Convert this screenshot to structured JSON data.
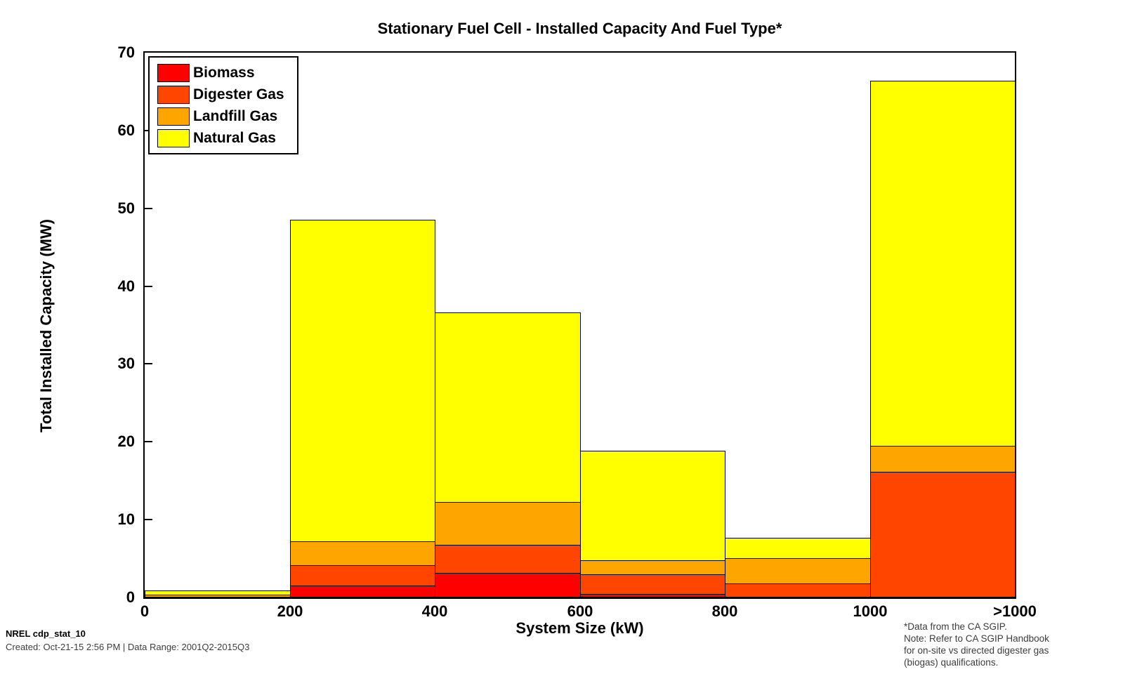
{
  "title": "Stationary Fuel Cell - Installed Capacity And Fuel Type*",
  "footer": {
    "left_line1": "NREL cdp_stat_10",
    "left_line2": "Created: Oct-21-15  2:56 PM | Data Range: 2001Q2-2015Q3",
    "note_lines": [
      "*Data from the CA SGIP.",
      "Note: Refer to CA SGIP Handbook",
      "for on-site vs directed digester gas",
      "(biogas) qualifications."
    ]
  },
  "chart_data": {
    "type": "bar",
    "stacked": true,
    "title": "Stationary Fuel Cell - Installed Capacity And Fuel Type*",
    "xlabel": "System Size (kW)",
    "ylabel": "Total Installed Capacity (MW)",
    "ylim": [
      0,
      70
    ],
    "yticks": [
      0,
      10,
      20,
      30,
      40,
      50,
      60,
      70
    ],
    "categories": [
      "0-200",
      "200-400",
      "400-600",
      "600-800",
      "800-1000",
      ">1000"
    ],
    "xtick_labels": [
      "0",
      "200",
      "400",
      "600",
      "800",
      "1000",
      ">1000"
    ],
    "grid": false,
    "legend_position": "top-left",
    "series": [
      {
        "name": "Biomass",
        "color": "#FF0000",
        "values": [
          0,
          1.4,
          3.1,
          0.4,
          0,
          0
        ]
      },
      {
        "name": "Digester Gas",
        "color": "#FF4500",
        "values": [
          0,
          2.7,
          3.6,
          2.5,
          1.75,
          16.1
        ]
      },
      {
        "name": "Landfill Gas",
        "color": "#FFA500",
        "values": [
          0.3,
          3.0,
          5.5,
          1.8,
          3.25,
          3.3
        ]
      },
      {
        "name": "Natural Gas",
        "color": "#FFFF00",
        "values": [
          0.55,
          41.3,
          24.3,
          14.1,
          2.6,
          46.9
        ]
      }
    ],
    "bar_totals": [
      0.85,
      48.4,
      36.5,
      18.8,
      7.6,
      66.3
    ]
  }
}
